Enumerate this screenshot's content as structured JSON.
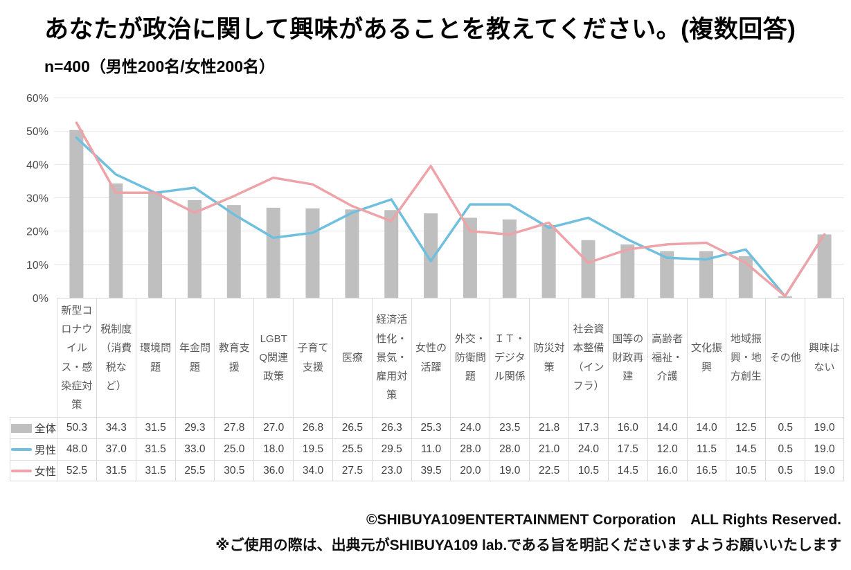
{
  "header": {
    "title": "あなたが政治に関して興味があることを教えてください。(複数回答)",
    "subtitle": "n=400（男性200名/女性200名）"
  },
  "chart_data": {
    "type": "bar",
    "subtype": "bar-with-lines-combo",
    "title": "あなたが政治に関して興味があることを教えてください。(複数回答)",
    "sample_note": "n=400（男性200名/女性200名）",
    "categories": [
      "新型コロナウイルス・感染症対策",
      "税制度（消費税など）",
      "環境問題",
      "年金問題",
      "教育支援",
      "LGBTQ関連政策",
      "子育て支援",
      "医療",
      "経済活性化・景気・雇用対策",
      "女性の活躍",
      "外交・防衛問題",
      "ＩＴ・デジタル関係",
      "防災対策",
      "社会資本整備（インフラ）",
      "国等の財政再建",
      "高齢者福祉・介護",
      "文化振興",
      "地域振興・地方創生",
      "その他",
      "興味はない"
    ],
    "series": [
      {
        "name": "全体",
        "type": "bar",
        "color": "#bfbfbf",
        "values": [
          50.3,
          34.3,
          31.5,
          29.3,
          27.8,
          27.0,
          26.8,
          26.5,
          26.3,
          25.3,
          24.0,
          23.5,
          21.8,
          17.3,
          16.0,
          14.0,
          14.0,
          12.5,
          0.5,
          19.0
        ]
      },
      {
        "name": "男性",
        "type": "line",
        "color": "#6fbfde",
        "values": [
          48.0,
          37.0,
          31.5,
          33.0,
          25.0,
          18.0,
          19.5,
          25.5,
          29.5,
          11.0,
          28.0,
          28.0,
          21.0,
          24.0,
          17.5,
          12.0,
          11.5,
          14.5,
          0.5,
          19.0
        ]
      },
      {
        "name": "女性",
        "type": "line",
        "color": "#eda3a8",
        "values": [
          52.5,
          31.5,
          31.5,
          25.5,
          30.5,
          36.0,
          34.0,
          27.5,
          23.0,
          39.5,
          20.0,
          19.0,
          22.5,
          10.5,
          14.5,
          16.0,
          16.5,
          10.5,
          0.5,
          19.0
        ]
      }
    ],
    "ylim": [
      0,
      60
    ],
    "yticks": [
      "0%",
      "10%",
      "20%",
      "30%",
      "40%",
      "50%",
      "60%"
    ],
    "grid": true,
    "legend_position": "table-left",
    "colors": {
      "grid": "#e7e7e7",
      "axis_text": "#4d4d4d",
      "table_border": "#d9d9d9",
      "category_text": "#595959",
      "value_text": "#404040"
    }
  },
  "footer": {
    "copyright": "©SHIBUYA109ENTERTAINMENT Corporation　ALL Rights Reserved.",
    "note": "※ご使用の際は、出典元がSHIBUYA109 lab.である旨を明記くださいますようお願いいたします"
  }
}
